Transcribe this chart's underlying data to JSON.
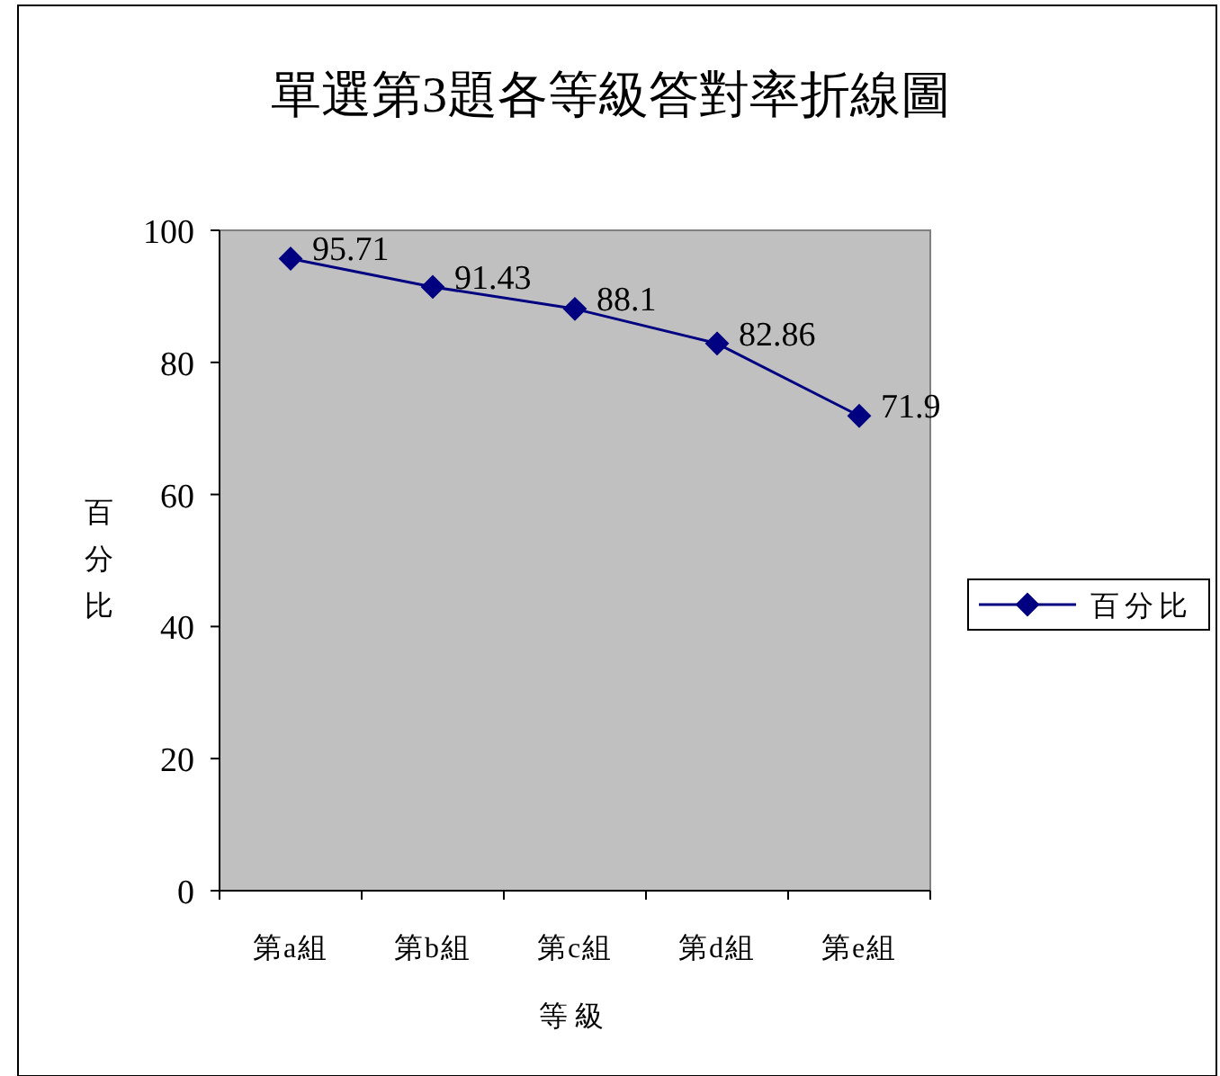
{
  "chart_data": {
    "type": "line",
    "title": "單選第3題各等級答對率折線圖",
    "xlabel": "等級",
    "ylabel": "百分比",
    "categories": [
      "第a組",
      "第b組",
      "第c組",
      "第d組",
      "第e組"
    ],
    "series": [
      {
        "name": "百分比",
        "color": "#000080",
        "values": [
          95.71,
          91.43,
          88.1,
          82.86,
          71.9
        ]
      }
    ],
    "ylim": [
      0,
      100
    ],
    "yticks": [
      0,
      20,
      40,
      60,
      80,
      100
    ],
    "data_labels": true,
    "marker": "diamond",
    "line_style": "solid",
    "legend": "right",
    "grid": false
  }
}
